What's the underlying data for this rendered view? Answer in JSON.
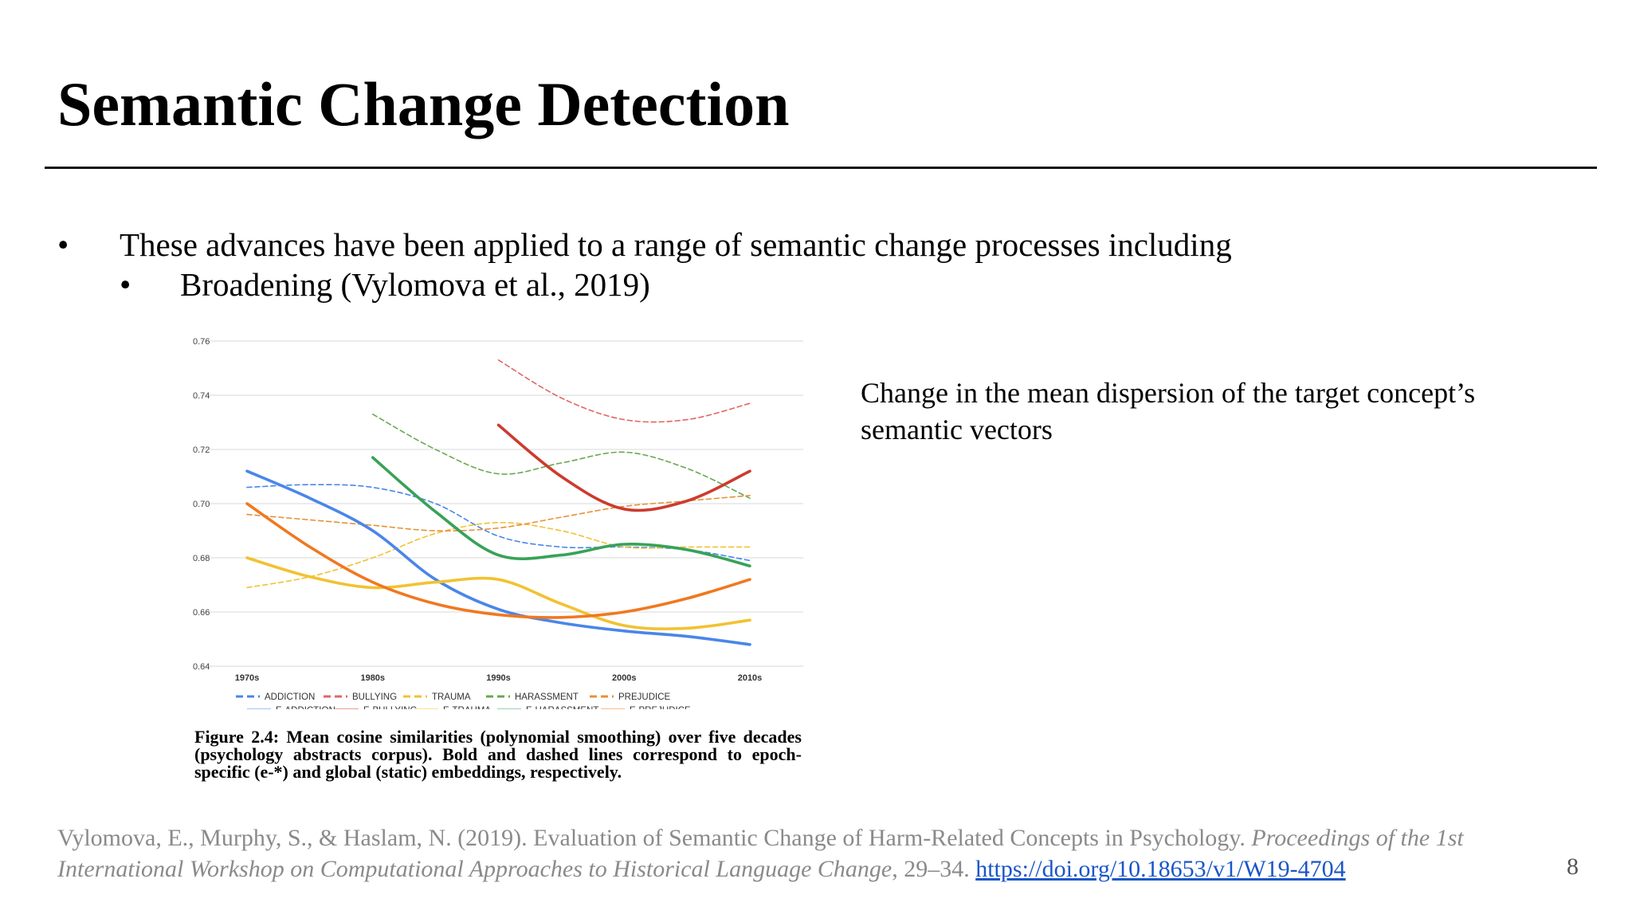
{
  "slide": {
    "title": "Semantic Change Detection",
    "bullet_1": "These advances have been applied to a range of semantic change processes including",
    "bullet_2": "Broadening (Vylomova et al., 2019)",
    "bullet_glyph": "•",
    "description": "Change in the mean dispersion of the target concept’s semantic vectors",
    "caption_label": "Figure 2.4:",
    "caption_text": "Mean cosine similarities (polynomial smoothing) over five decades (psychology abstracts corpus). Bold and dashed lines correspond to epoch-specific (e-*) and global (static) embeddings, respectively.",
    "citation_authors": "Vylomova, E., Murphy, S., & Haslam, N. (2019). Evaluation of Semantic Change of Harm-Related Concepts in Psychology.",
    "citation_venue": "Proceedings of the 1st International Workshop on Computational Approaches to Historical Language Change",
    "citation_pages": ", 29–34.",
    "citation_link": "https://doi.org/10.18653/v1/W19-4704",
    "page_number": "8"
  },
  "chart_data": {
    "type": "line",
    "title": "",
    "xlabel": "",
    "ylabel": "",
    "categories": [
      "1970s",
      "1980s",
      "1990s",
      "2000s",
      "2010s"
    ],
    "x": [
      1970,
      1980,
      1990,
      2000,
      2010
    ],
    "ylim": [
      0.64,
      0.76
    ],
    "yticks": [
      "0.76",
      "0.74",
      "0.72",
      "0.70",
      "0.68",
      "0.66",
      "0.64"
    ],
    "grid": true,
    "legend_position": "bottom",
    "series": [
      {
        "name": "ADDICTION",
        "color": "#4a86e8",
        "style": "dashed",
        "x": [
          1970,
          1975,
          1980,
          1985,
          1990,
          1995,
          2000,
          2005,
          2010
        ],
        "values": [
          0.706,
          0.707,
          0.706,
          0.7,
          0.688,
          0.684,
          0.684,
          0.683,
          0.679
        ]
      },
      {
        "name": "BULLYING",
        "color": "#e06666",
        "style": "dashed",
        "x": [
          1990,
          1995,
          2000,
          2005,
          2010
        ],
        "values": [
          0.753,
          0.739,
          0.731,
          0.731,
          0.737
        ]
      },
      {
        "name": "TRAUMA",
        "color": "#f1c232",
        "style": "dashed",
        "x": [
          1970,
          1975,
          1980,
          1985,
          1990,
          1995,
          2000,
          2005,
          2010
        ],
        "values": [
          0.669,
          0.673,
          0.68,
          0.689,
          0.693,
          0.69,
          0.684,
          0.684,
          0.684
        ]
      },
      {
        "name": "HARASSMENT",
        "color": "#6aa84f",
        "style": "dashed",
        "x": [
          1980,
          1985,
          1990,
          1995,
          2000,
          2005,
          2010
        ],
        "values": [
          0.733,
          0.72,
          0.711,
          0.715,
          0.719,
          0.713,
          0.702
        ]
      },
      {
        "name": "PREJUDICE",
        "color": "#e69138",
        "style": "dashed",
        "x": [
          1970,
          1975,
          1980,
          1985,
          1990,
          1995,
          2000,
          2005,
          2010
        ],
        "values": [
          0.696,
          0.694,
          0.692,
          0.69,
          0.691,
          0.695,
          0.699,
          0.701,
          0.703
        ]
      },
      {
        "name": "E-ADDICTION",
        "color": "#4a86e8",
        "style": "solid",
        "x": [
          1970,
          1975,
          1980,
          1985,
          1990,
          1995,
          2000,
          2005,
          2010
        ],
        "values": [
          0.712,
          0.702,
          0.69,
          0.672,
          0.661,
          0.656,
          0.653,
          0.651,
          0.648
        ]
      },
      {
        "name": "E-BULLYING",
        "color": "#cc3b2f",
        "style": "solid",
        "x": [
          1990,
          1995,
          2000,
          2005,
          2010
        ],
        "values": [
          0.729,
          0.71,
          0.698,
          0.701,
          0.712
        ]
      },
      {
        "name": "E-TRAUMA",
        "color": "#f1c232",
        "style": "solid",
        "x": [
          1970,
          1975,
          1980,
          1985,
          1990,
          1995,
          2000,
          2005,
          2010
        ],
        "values": [
          0.68,
          0.673,
          0.669,
          0.671,
          0.672,
          0.663,
          0.655,
          0.654,
          0.657
        ]
      },
      {
        "name": "E-HARASSMENT",
        "color": "#38a257",
        "style": "solid",
        "x": [
          1980,
          1985,
          1990,
          1995,
          2000,
          2005,
          2010
        ],
        "values": [
          0.717,
          0.697,
          0.681,
          0.681,
          0.685,
          0.683,
          0.677
        ]
      },
      {
        "name": "E-PREJUDICE",
        "color": "#f07820",
        "style": "solid",
        "x": [
          1970,
          1975,
          1980,
          1985,
          1990,
          1995,
          2000,
          2005,
          2010
        ],
        "values": [
          0.7,
          0.684,
          0.671,
          0.663,
          0.659,
          0.658,
          0.66,
          0.665,
          0.672
        ]
      }
    ]
  }
}
